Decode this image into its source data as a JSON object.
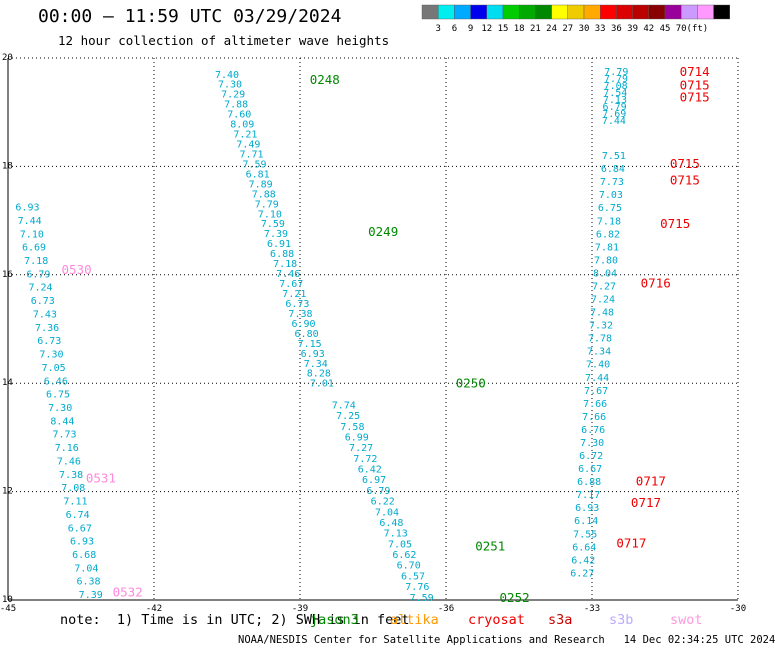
{
  "title": "00:00 – 11:59 UTC 03/29/2024",
  "subtitle": "12 hour collection of altimeter wave heights",
  "colorbar": {
    "colors": [
      "#777777",
      "#00eeee",
      "#00aaff",
      "#0000ee",
      "#00ddee",
      "#00cc00",
      "#00aa00",
      "#008800",
      "#ffff00",
      "#eecc00",
      "#ffaa00",
      "#ff0000",
      "#dd0000",
      "#bb0000",
      "#880000",
      "#990099",
      "#cc99ff",
      "#ff99ff",
      "#000000"
    ],
    "labels": [
      "3",
      "6",
      "9",
      "12",
      "15",
      "18",
      "21",
      "24",
      "27",
      "30",
      "33",
      "36",
      "39",
      "42",
      "45",
      "70",
      "(ft)"
    ]
  },
  "note": "note:  1) Time is in UTC; 2) SWH is in feet",
  "legend_missions": [
    {
      "name": "jason3",
      "color": "#008800"
    },
    {
      "name": "altika",
      "color": "#ff9900"
    },
    {
      "name": "cryosat",
      "color": "#ee0000"
    },
    {
      "name": "s3a",
      "color": "#cc0000"
    },
    {
      "name": "s3b",
      "color": "#bbaaff"
    },
    {
      "name": "swot",
      "color": "#ff99dd"
    }
  ],
  "footer": "NOAA/NESDIS Center for Satellite Applications and Research   14 Dec 02:34:25 UTC 2024",
  "chart_data": {
    "type": "scatter",
    "xlim": [
      -45,
      -30
    ],
    "ylim": [
      10,
      20
    ],
    "x_ticks": [
      "-45",
      "-42",
      "-39",
      "-36",
      "-33",
      "-30"
    ],
    "y_ticks": [
      "10",
      "12",
      "14",
      "16",
      "18",
      "20"
    ],
    "grid": true,
    "point_color": "#00aacc",
    "tracks": [
      {
        "values": [
          "7.40",
          "7.30",
          "7.29",
          "7.88",
          "7.60",
          "8.09",
          "7.21",
          "7.49",
          "7.71",
          "7.59",
          "6.81",
          "7.89",
          "7.88",
          "7.79",
          "7.10",
          "7.59",
          "7.39",
          "6.91",
          "6.88",
          "7.18",
          "7.46",
          "7.67",
          "7.21",
          "6.73",
          "7.38",
          "6.90",
          "6.80",
          "7.15",
          "6.93",
          "7.34",
          "8.28",
          "7.01"
        ],
        "x_start": -40.5,
        "y_start": 19.7,
        "x_end": -38.55,
        "y_end": 14.0
      },
      {
        "values": [
          "7.74",
          "7.25",
          "7.58",
          "6.99",
          "7.27",
          "7.72",
          "6.42",
          "6.97",
          "6.79",
          "6.22",
          "7.04",
          "6.48",
          "7.13",
          "7.05",
          "6.62",
          "6.70",
          "6.57",
          "7.76",
          "7.59"
        ],
        "x_start": -38.1,
        "y_start": 13.6,
        "x_end": -36.5,
        "y_end": 10.05
      },
      {
        "values": [
          "6.93",
          "7.44",
          "7.10",
          "6.69",
          "7.18",
          "6.79",
          "7.24",
          "6.73",
          "7.43",
          "7.36",
          "6.73",
          "7.30",
          "7.05",
          "6.46",
          "6.75",
          "7.30",
          "8.44",
          "7.73",
          "7.16",
          "7.46",
          "7.38",
          "7.08",
          "7.11",
          "6.74",
          "6.67",
          "6.93",
          "6.68",
          "7.04",
          "6.38",
          "7.39"
        ],
        "x_start": -44.6,
        "y_start": 17.25,
        "x_end": -43.3,
        "y_end": 10.1
      },
      {
        "values": [
          "7.79",
          "7.79",
          "7.08",
          "7.54",
          "7.13",
          "6.79",
          "7.69",
          "7.44"
        ],
        "x_start": -32.5,
        "y_start": 19.75,
        "x_end": -32.55,
        "y_end": 18.85
      },
      {
        "values": [
          "7.51",
          "6.84",
          "7.73",
          "7.03",
          "6.75",
          "7.18",
          "6.82",
          "7.81",
          "7.80",
          "8.04",
          "7.27",
          "7.24",
          "7.48",
          "7.32",
          "7.78",
          "7.34",
          "7.40",
          "7.44",
          "7.67",
          "7.66",
          "7.66",
          "6.76",
          "7.30",
          "6.72",
          "6.67",
          "6.88",
          "7.17",
          "6.93",
          "6.14",
          "7.55",
          "6.64",
          "6.42",
          "6.27"
        ],
        "x_start": -32.55,
        "y_start": 18.2,
        "x_end": -33.2,
        "y_end": 10.5
      }
    ],
    "labels": [
      {
        "text": "0248",
        "x": -38.8,
        "y": 19.6,
        "color": "#008800"
      },
      {
        "text": "0249",
        "x": -37.6,
        "y": 16.8,
        "color": "#008800"
      },
      {
        "text": "0250",
        "x": -35.8,
        "y": 14.0,
        "color": "#008800"
      },
      {
        "text": "0251",
        "x": -35.4,
        "y": 11.0,
        "color": "#008800"
      },
      {
        "text": "0252",
        "x": -34.9,
        "y": 10.05,
        "color": "#008800"
      },
      {
        "text": "0530",
        "x": -43.9,
        "y": 16.1,
        "color": "#ff88dd"
      },
      {
        "text": "0531",
        "x": -43.4,
        "y": 12.25,
        "color": "#ff88dd"
      },
      {
        "text": "0532",
        "x": -42.85,
        "y": 10.15,
        "color": "#ff88dd"
      },
      {
        "text": "0714",
        "x": -31.2,
        "y": 19.75,
        "color": "#ee0000"
      },
      {
        "text": "0715",
        "x": -31.2,
        "y": 19.5,
        "color": "#ee0000"
      },
      {
        "text": "0715",
        "x": -31.2,
        "y": 19.28,
        "color": "#ee0000"
      },
      {
        "text": "0715",
        "x": -31.4,
        "y": 18.05,
        "color": "#ee0000"
      },
      {
        "text": "0715",
        "x": -31.4,
        "y": 17.75,
        "color": "#ee0000"
      },
      {
        "text": "0715",
        "x": -31.6,
        "y": 16.95,
        "color": "#ee0000"
      },
      {
        "text": "0716",
        "x": -32.0,
        "y": 15.85,
        "color": "#ee0000"
      },
      {
        "text": "0717",
        "x": -32.1,
        "y": 12.2,
        "color": "#ee0000"
      },
      {
        "text": "0717",
        "x": -32.2,
        "y": 11.8,
        "color": "#ee0000"
      },
      {
        "text": "0717",
        "x": -32.5,
        "y": 11.05,
        "color": "#ee0000"
      }
    ]
  }
}
